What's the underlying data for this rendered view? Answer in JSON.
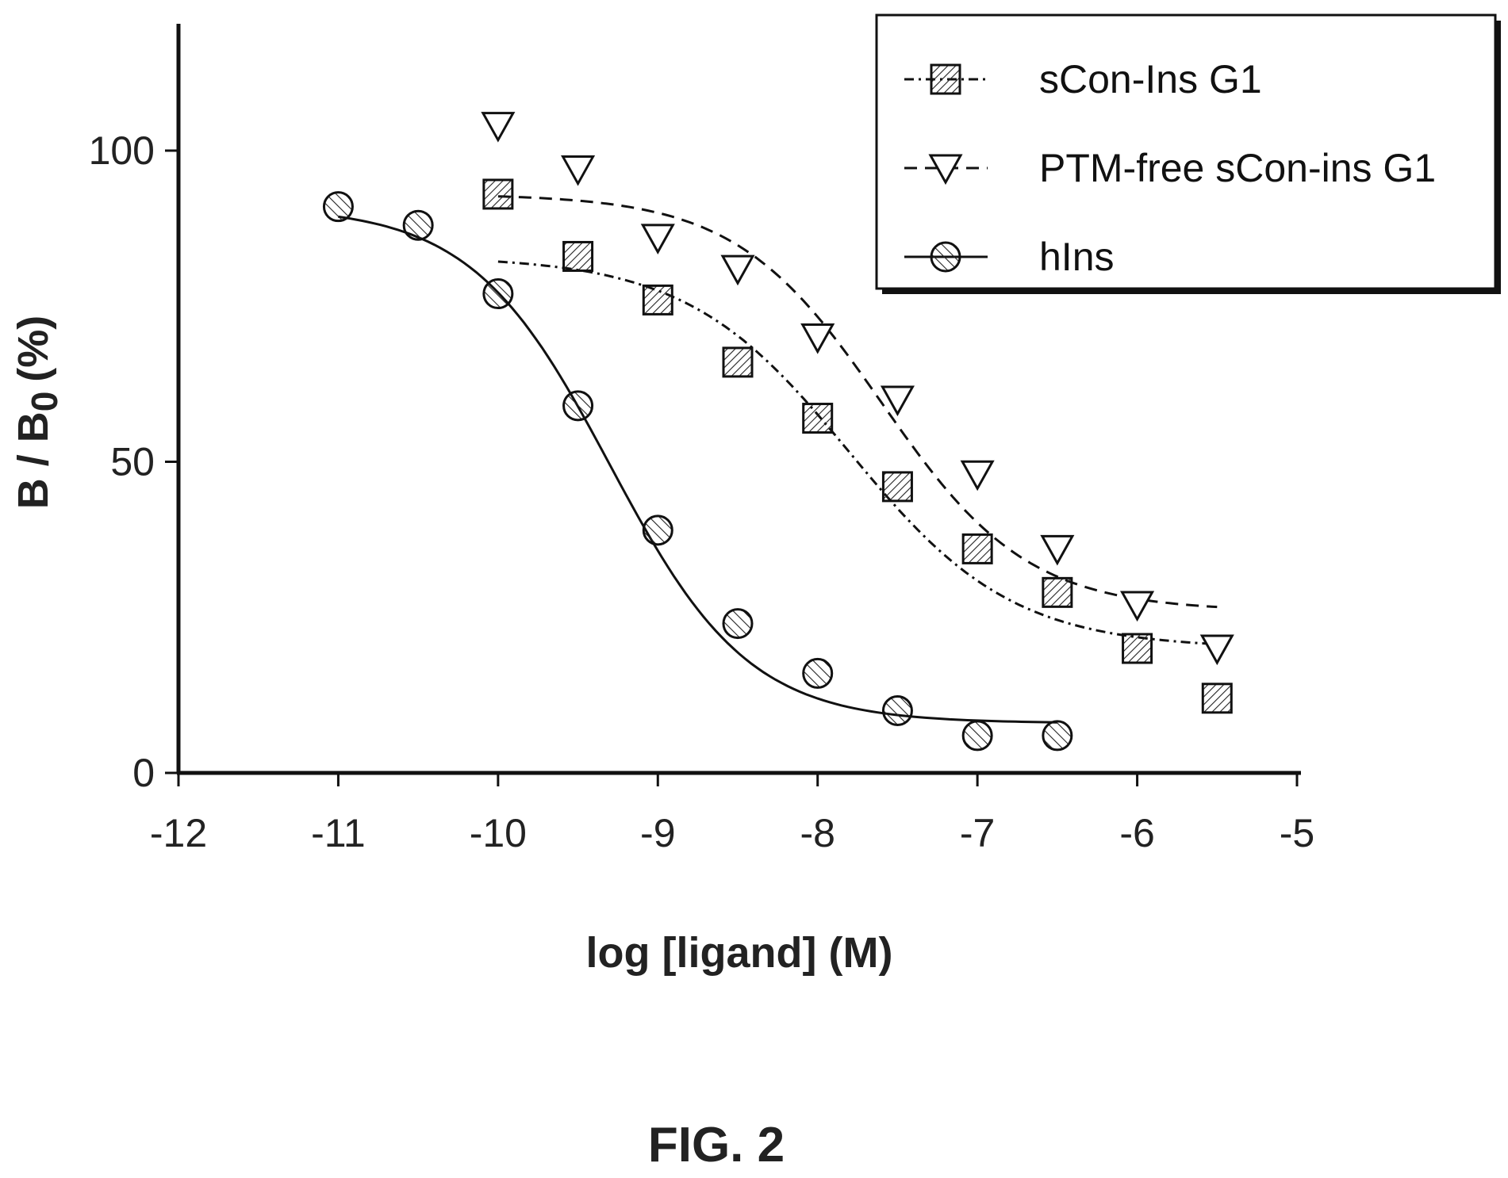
{
  "figure": {
    "caption": "FIG. 2"
  },
  "chart_data": {
    "type": "scatter",
    "xlabel": "log [ligand] (M)",
    "ylabel_main": "B / B",
    "ylabel_sub": "0",
    "ylabel_unit": "(%)",
    "xlim": [
      -12,
      -5
    ],
    "ylim": [
      0,
      120
    ],
    "x_ticks": [
      -12,
      -11,
      -10,
      -9,
      -8,
      -7,
      -6,
      -5
    ],
    "x_tick_labels": [
      "-12",
      "-11",
      "-10",
      "-9",
      "-8",
      "-7",
      "-6",
      "-5"
    ],
    "y_ticks": [
      0,
      50,
      100
    ],
    "y_tick_labels": [
      "0",
      "50",
      "100"
    ],
    "grid": false,
    "legend_position": "top-right",
    "series": [
      {
        "name": "sCon-Ins G1",
        "marker": "square",
        "line_style": "dash-dot",
        "x": [
          -10,
          -9.5,
          -9,
          -8.5,
          -8,
          -7.5,
          -7,
          -6.5,
          -6,
          -5.5
        ],
        "y": [
          93,
          83,
          76,
          66,
          57,
          46,
          36,
          29,
          20,
          12
        ],
        "fit": {
          "top": 83,
          "bottom": 20,
          "log_ec50": -7.8,
          "hill": 0.85,
          "x_range": [
            -10,
            -5.5
          ]
        }
      },
      {
        "name": "PTM-free sCon-ins G1",
        "marker": "triangle-down",
        "line_style": "dashed",
        "x": [
          -10,
          -9.5,
          -9,
          -8.5,
          -8,
          -7.5,
          -7,
          -6.5,
          -6,
          -5.5
        ],
        "y": [
          104,
          97,
          86,
          81,
          70,
          60,
          48,
          36,
          27,
          20
        ],
        "fit": {
          "top": 93,
          "bottom": 26,
          "log_ec50": -7.6,
          "hill": 0.95,
          "x_range": [
            -10,
            -5.5
          ]
        }
      },
      {
        "name": "hIns",
        "marker": "circle",
        "line_style": "solid",
        "x": [
          -11,
          -10.5,
          -10,
          -9.5,
          -9,
          -8.5,
          -8,
          -7.5,
          -7,
          -6.5
        ],
        "y": [
          91,
          88,
          77,
          59,
          39,
          24,
          16,
          10,
          6,
          6
        ],
        "fit": {
          "top": 91,
          "bottom": 8,
          "log_ec50": -9.3,
          "hill": 1.0,
          "x_range": [
            -11,
            -6.5
          ]
        }
      }
    ]
  }
}
